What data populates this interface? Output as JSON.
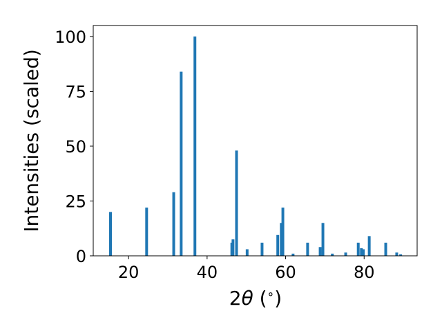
{
  "chart_data": {
    "type": "bar",
    "xlabel": "2θ (°)",
    "xlabel_parts": {
      "prefix": "2",
      "theta": "θ",
      "suffix": " (",
      "degree": "∘",
      "close": ")"
    },
    "ylabel": "Intensities (scaled)",
    "xlim": [
      11,
      93.5
    ],
    "ylim": [
      0,
      105
    ],
    "xticks": [
      20,
      40,
      60,
      80
    ],
    "yticks": [
      0,
      25,
      50,
      75,
      100
    ],
    "grid": false,
    "bar_color": "#1f77b4",
    "x": [
      15.4,
      24.6,
      31.5,
      33.4,
      36.9,
      46.3,
      46.6,
      47.5,
      50.2,
      54.0,
      58.0,
      58.9,
      59.3,
      61.9,
      65.6,
      68.8,
      69.5,
      71.9,
      75.3,
      78.5,
      79.3,
      79.8,
      81.3,
      85.5,
      88.3,
      89.3
    ],
    "values": [
      20,
      22,
      29,
      84,
      100,
      6,
      7.5,
      48,
      3,
      6,
      9.5,
      15,
      22,
      1,
      6,
      4,
      15,
      1,
      1.5,
      6,
      3.5,
      3,
      9,
      6,
      1.5,
      0.7
    ]
  }
}
